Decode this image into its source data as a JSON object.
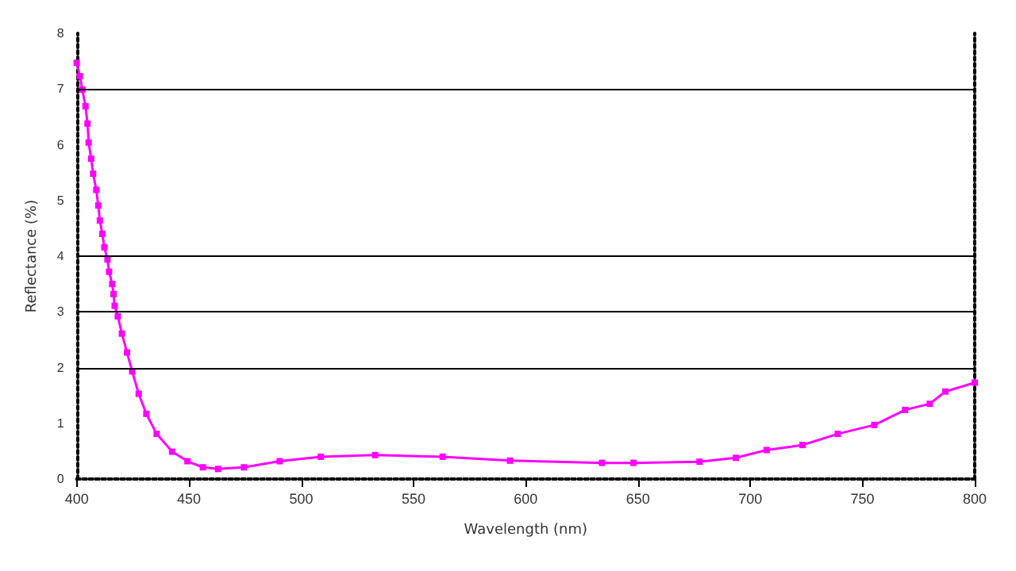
{
  "chart_data": {
    "type": "line",
    "xlabel": "Wavelength (nm)",
    "ylabel": "Reflectance (%)",
    "xlim": [
      400,
      800
    ],
    "xticks": [
      400,
      450,
      500,
      550,
      600,
      650,
      700,
      750,
      800
    ],
    "ylim": [
      0,
      8
    ],
    "yticks": [
      0,
      1,
      2,
      3,
      4,
      5,
      6,
      7,
      8
    ],
    "marker": "square",
    "line_style": "solid",
    "grid": false,
    "ref_lines": [
      {
        "axis": "y",
        "value": 2,
        "color": "#000000"
      },
      {
        "axis": "y",
        "value": 3,
        "color": "#000000"
      },
      {
        "axis": "y",
        "value": 4,
        "color": "#000000"
      },
      {
        "axis": "y",
        "value": 7,
        "color": "#000000"
      }
    ],
    "series": [
      {
        "color": "#ff00ff",
        "x": [
          400,
          401.4,
          402.5,
          403.9,
          404.8,
          405.3,
          406.4,
          407.3,
          408.7,
          409.6,
          410.3,
          411.4,
          412.3,
          413.7,
          414.4,
          415.8,
          416.4,
          416.9,
          418.3,
          420.1,
          422.4,
          424.7,
          427.6,
          431,
          435.6,
          442.5,
          449.3,
          456.2,
          463,
          474.5,
          490.4,
          508.7,
          532.9,
          563,
          593,
          634,
          648,
          677.4,
          693.6,
          707.3,
          723.3,
          739,
          755.3,
          769,
          780,
          786.9,
          800
        ],
        "values": [
          7.47,
          7.23,
          6.99,
          6.69,
          6.38,
          6.04,
          5.75,
          5.48,
          5.19,
          4.91,
          4.64,
          4.4,
          4.16,
          3.94,
          3.72,
          3.5,
          3.32,
          3.11,
          2.92,
          2.61,
          2.27,
          1.93,
          1.53,
          1.17,
          0.81,
          0.49,
          0.32,
          0.21,
          0.18,
          0.21,
          0.32,
          0.4,
          0.43,
          0.4,
          0.33,
          0.29,
          0.29,
          0.31,
          0.38,
          0.52,
          0.61,
          0.81,
          0.97,
          1.24,
          1.35,
          1.57,
          1.73
        ]
      }
    ]
  }
}
